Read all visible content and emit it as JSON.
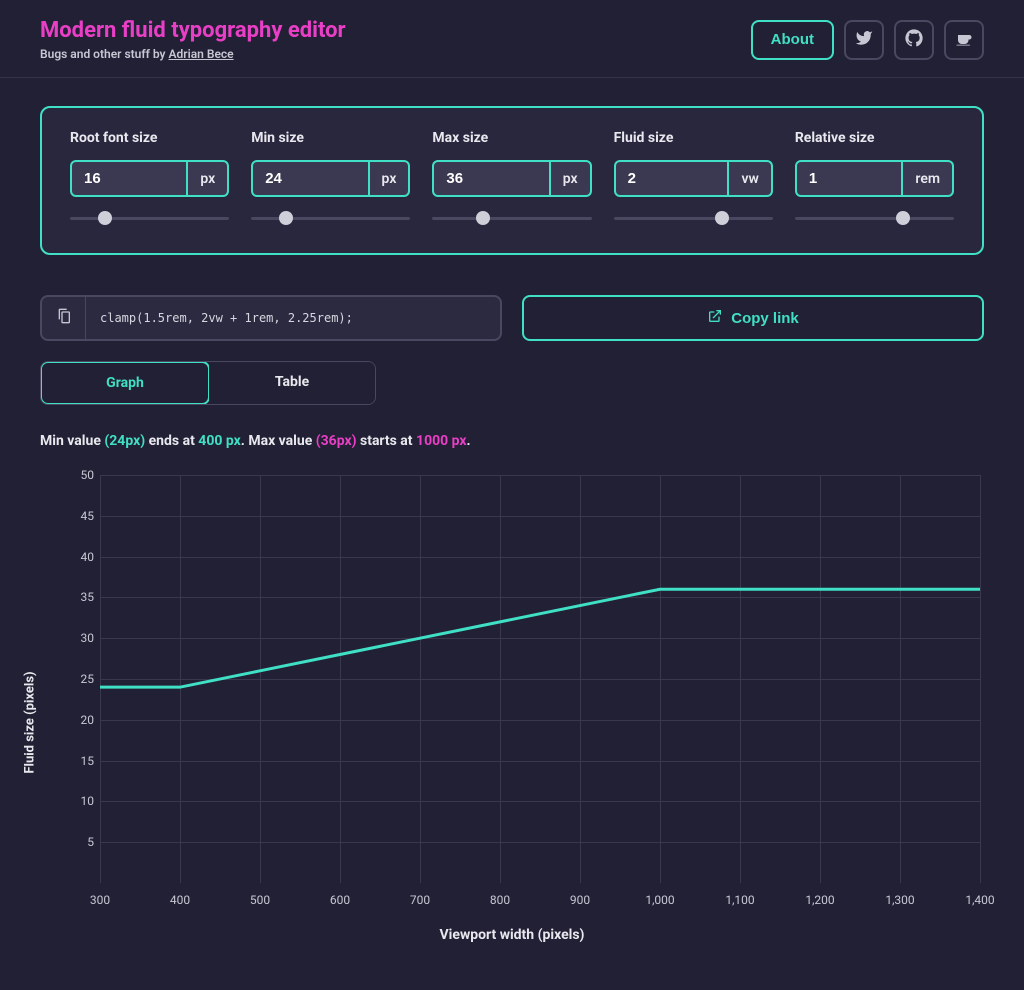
{
  "colors": {
    "bg": "#222034",
    "panel_bg": "#29273e",
    "input_bg": "#3b3951",
    "grid": "#3a384e",
    "border_muted": "#4a4860",
    "accent": "#3fe0c5",
    "pink": "#e83fc6",
    "text": "#e8e8ee",
    "text_muted": "#c7c7d4"
  },
  "header": {
    "title": "Modern fluid typography editor",
    "subtitle_prefix": "Bugs and other stuff by ",
    "author": "Adrian Bece",
    "about_label": "About"
  },
  "controls": [
    {
      "label": "Root font size",
      "value": "16",
      "unit": "px",
      "thumb_pct": 22
    },
    {
      "label": "Min size",
      "value": "24",
      "unit": "px",
      "thumb_pct": 22
    },
    {
      "label": "Max size",
      "value": "36",
      "unit": "px",
      "thumb_pct": 32
    },
    {
      "label": "Fluid size",
      "value": "2",
      "unit": "vw",
      "thumb_pct": 68
    },
    {
      "label": "Relative size",
      "value": "1",
      "unit": "rem",
      "thumb_pct": 68
    }
  ],
  "code": {
    "snippet": "clamp(1.5rem, 2vw + 1rem, 2.25rem);",
    "copy_link": "Copy link"
  },
  "tabs": {
    "graph": "Graph",
    "table": "Table",
    "active": "graph"
  },
  "summary": {
    "text_1": "Min value ",
    "min_px": "(24px)",
    "text_2": " ends at ",
    "min_vw": "400 px",
    "text_3": ". Max value ",
    "max_px": "(36px)",
    "text_4": " starts at ",
    "max_vw": "1000 px",
    "text_5": "."
  },
  "chart": {
    "type": "line",
    "xlabel": "Viewport width (pixels)",
    "ylabel": "Fluid size (pixels)",
    "xlim": [
      300,
      1400
    ],
    "ylim": [
      0,
      50
    ],
    "y_ticks": [
      5,
      10,
      15,
      20,
      25,
      30,
      35,
      40,
      45,
      50
    ],
    "x_ticks": [
      300,
      400,
      500,
      600,
      700,
      800,
      900,
      1000,
      1100,
      1200,
      1300,
      1400
    ],
    "x_tick_labels": [
      "300",
      "400",
      "500",
      "600",
      "700",
      "800",
      "900",
      "1,000",
      "1,100",
      "1,200",
      "1,300",
      "1,400"
    ],
    "series": {
      "color": "#3fe0c5",
      "width": 3,
      "points": [
        [
          300,
          24
        ],
        [
          400,
          24
        ],
        [
          500,
          26
        ],
        [
          600,
          28
        ],
        [
          700,
          30
        ],
        [
          800,
          32
        ],
        [
          900,
          34
        ],
        [
          1000,
          36
        ],
        [
          1100,
          36
        ],
        [
          1200,
          36
        ],
        [
          1300,
          36
        ],
        [
          1400,
          36
        ]
      ]
    },
    "background_color": "#222034",
    "grid_color": "#3a384e",
    "axis_label_fontsize": 14,
    "tick_fontsize": 12
  }
}
